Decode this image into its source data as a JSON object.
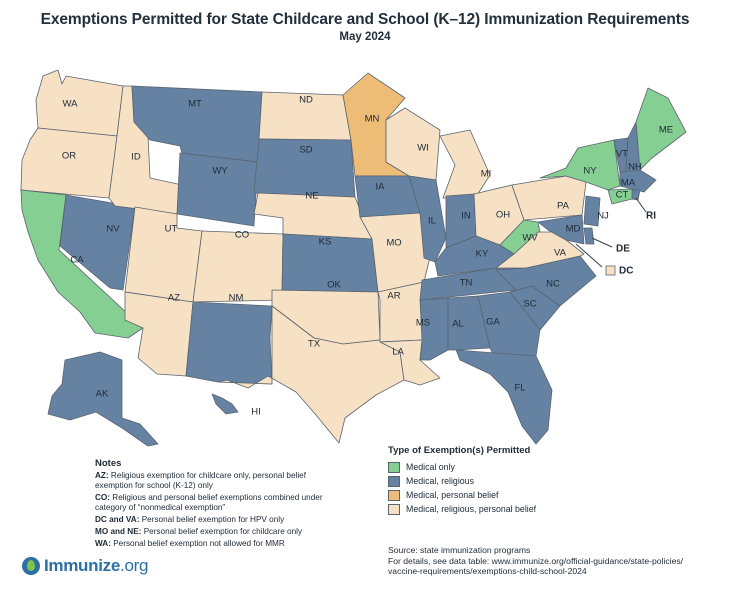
{
  "title": "Exemptions Permitted for State Childcare and School (K–12) Immunization Requirements",
  "subtitle": "May 2024",
  "colors": {
    "medical_only": "#86cf92",
    "medical_religious": "#6582a3",
    "medical_personal": "#edbd78",
    "medical_religious_personal": "#f6e1c4"
  },
  "legend": {
    "title": "Type of Exemption(s) Permitted",
    "items": [
      {
        "label": "Medical only",
        "color": "#86cf92"
      },
      {
        "label": "Medical, religious",
        "color": "#6582a3"
      },
      {
        "label": "Medical, personal belief",
        "color": "#edbd78"
      },
      {
        "label": "Medical, religious, personal belief",
        "color": "#f6e1c4"
      }
    ]
  },
  "notes": {
    "title": "Notes",
    "items": [
      {
        "key": "AZ:",
        "text": "Religious exemption for childcare only, personal belief exemption for school (K-12) only"
      },
      {
        "key": "CO:",
        "text": "Religious and personal belief exemptions combined under category of “nonmedical exemption”"
      },
      {
        "key": "DC and VA:",
        "text": "Personal belief exemption for HPV only"
      },
      {
        "key": "MO and NE:",
        "text": "Personal belief exemption for childcare only"
      },
      {
        "key": "WA:",
        "text": "Personal belief exemption not allowed for MMR"
      }
    ]
  },
  "source": {
    "line1": "Source: state immunization programs",
    "line2": "For details, see data table: www.immunize.org/official-guidance/state-policies/",
    "line3": "vaccine-requirements/exemptions-child-school-2024"
  },
  "logo": {
    "name": "Immunize",
    "suffix": ".org"
  },
  "map_data": {
    "states": [
      {
        "abbr": "WA",
        "category": "medical_religious_personal"
      },
      {
        "abbr": "OR",
        "category": "medical_religious_personal"
      },
      {
        "abbr": "CA",
        "category": "medical_only"
      },
      {
        "abbr": "NV",
        "category": "medical_religious"
      },
      {
        "abbr": "ID",
        "category": "medical_religious_personal"
      },
      {
        "abbr": "MT",
        "category": "medical_religious"
      },
      {
        "abbr": "WY",
        "category": "medical_religious"
      },
      {
        "abbr": "UT",
        "category": "medical_religious_personal"
      },
      {
        "abbr": "AZ",
        "category": "medical_religious_personal"
      },
      {
        "abbr": "CO",
        "category": "medical_religious_personal"
      },
      {
        "abbr": "NM",
        "category": "medical_religious"
      },
      {
        "abbr": "ND",
        "category": "medical_religious_personal"
      },
      {
        "abbr": "SD",
        "category": "medical_religious"
      },
      {
        "abbr": "NE",
        "category": "medical_religious_personal"
      },
      {
        "abbr": "KS",
        "category": "medical_religious"
      },
      {
        "abbr": "OK",
        "category": "medical_religious_personal"
      },
      {
        "abbr": "TX",
        "category": "medical_religious_personal"
      },
      {
        "abbr": "MN",
        "category": "medical_personal"
      },
      {
        "abbr": "IA",
        "category": "medical_religious"
      },
      {
        "abbr": "MO",
        "category": "medical_religious_personal"
      },
      {
        "abbr": "AR",
        "category": "medical_religious_personal"
      },
      {
        "abbr": "LA",
        "category": "medical_religious_personal"
      },
      {
        "abbr": "WI",
        "category": "medical_religious_personal"
      },
      {
        "abbr": "IL",
        "category": "medical_religious"
      },
      {
        "abbr": "MI",
        "category": "medical_religious_personal"
      },
      {
        "abbr": "IN",
        "category": "medical_religious"
      },
      {
        "abbr": "OH",
        "category": "medical_religious_personal"
      },
      {
        "abbr": "KY",
        "category": "medical_religious"
      },
      {
        "abbr": "TN",
        "category": "medical_religious"
      },
      {
        "abbr": "MS",
        "category": "medical_religious"
      },
      {
        "abbr": "AL",
        "category": "medical_religious"
      },
      {
        "abbr": "GA",
        "category": "medical_religious"
      },
      {
        "abbr": "FL",
        "category": "medical_religious"
      },
      {
        "abbr": "SC",
        "category": "medical_religious"
      },
      {
        "abbr": "NC",
        "category": "medical_religious"
      },
      {
        "abbr": "VA",
        "category": "medical_religious_personal"
      },
      {
        "abbr": "WV",
        "category": "medical_only"
      },
      {
        "abbr": "PA",
        "category": "medical_religious_personal"
      },
      {
        "abbr": "NY",
        "category": "medical_only"
      },
      {
        "abbr": "VT",
        "category": "medical_religious"
      },
      {
        "abbr": "NH",
        "category": "medical_religious"
      },
      {
        "abbr": "ME",
        "category": "medical_only"
      },
      {
        "abbr": "MA",
        "category": "medical_religious"
      },
      {
        "abbr": "RI",
        "category": "medical_religious"
      },
      {
        "abbr": "CT",
        "category": "medical_only"
      },
      {
        "abbr": "NJ",
        "category": "medical_religious"
      },
      {
        "abbr": "DE",
        "category": "medical_religious"
      },
      {
        "abbr": "MD",
        "category": "medical_religious"
      },
      {
        "abbr": "DC",
        "category": "medical_religious_personal"
      },
      {
        "abbr": "AK",
        "category": "medical_religious"
      },
      {
        "abbr": "HI",
        "category": "medical_religious"
      }
    ]
  }
}
